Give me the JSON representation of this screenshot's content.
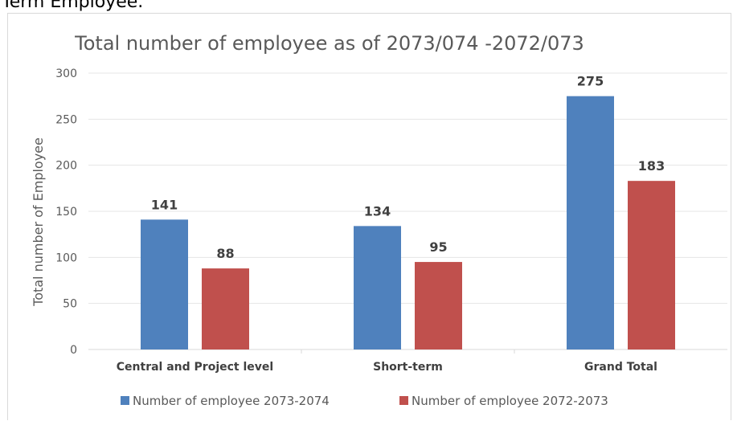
{
  "page_heading": "Term Employee.",
  "chart_data": {
    "type": "bar",
    "title": "Total number of employee as of 2073/074 -2072/073",
    "xlabel": "",
    "ylabel": "Total number of Employee",
    "categories": [
      "Central and Project level",
      "Short-term",
      "Grand Total"
    ],
    "series": [
      {
        "name": "Number of employee 2073-2074",
        "values": [
          141,
          134,
          275
        ],
        "color": "#4f81bd"
      },
      {
        "name": "Number of employee 2072-2073",
        "values": [
          88,
          95,
          183
        ],
        "color": "#c0504d"
      }
    ],
    "ylim": [
      0,
      300
    ],
    "yticks": [
      0,
      50,
      100,
      150,
      200,
      250,
      300
    ],
    "grid": true,
    "data_labels": true,
    "legend_position": "bottom"
  }
}
